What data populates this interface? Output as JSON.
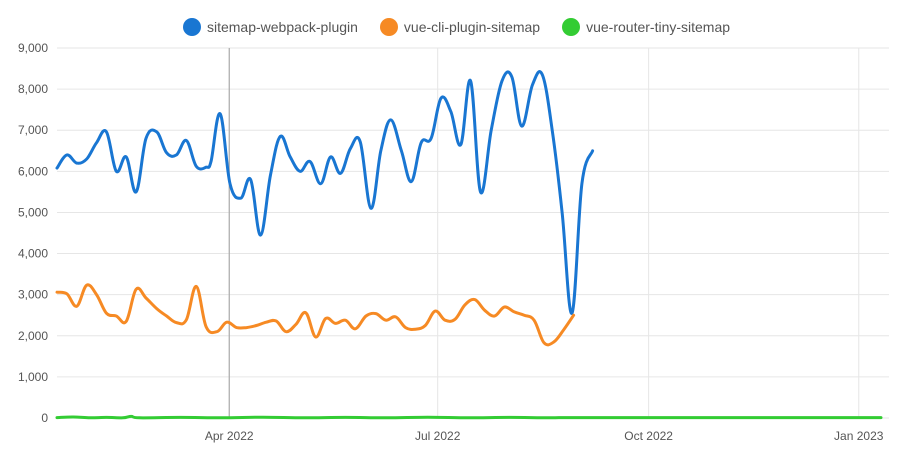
{
  "chart_data": {
    "type": "line",
    "title": "",
    "xlabel": "",
    "ylabel": "",
    "ylim": [
      0,
      9000
    ],
    "yticks": [
      0,
      1000,
      2000,
      3000,
      4000,
      5000,
      6000,
      7000,
      8000,
      9000
    ],
    "ytick_labels": [
      "0",
      "1,000",
      "2,000",
      "3,000",
      "4,000",
      "5,000",
      "6,000",
      "7,000",
      "8,000",
      "9,000"
    ],
    "xrange": [
      0,
      1
    ],
    "xticks": [
      {
        "label": "Apr 2022",
        "pos": 0.209
      },
      {
        "label": "Jul 2022",
        "pos": 0.462
      },
      {
        "label": "Oct 2022",
        "pos": 0.718
      },
      {
        "label": "Jan 2023",
        "pos": 0.973
      }
    ],
    "vertical_marker": 0.209,
    "legend_position": "top-center",
    "series": [
      {
        "name": "sitemap-webpack-plugin",
        "color": "#1976d2",
        "points": [
          [
            0.0,
            6080
          ],
          [
            0.012,
            6400
          ],
          [
            0.024,
            6200
          ],
          [
            0.036,
            6300
          ],
          [
            0.048,
            6700
          ],
          [
            0.06,
            6960
          ],
          [
            0.072,
            6000
          ],
          [
            0.084,
            6350
          ],
          [
            0.096,
            5500
          ],
          [
            0.108,
            6800
          ],
          [
            0.121,
            6960
          ],
          [
            0.133,
            6450
          ],
          [
            0.145,
            6400
          ],
          [
            0.157,
            6750
          ],
          [
            0.169,
            6120
          ],
          [
            0.181,
            6100
          ],
          [
            0.187,
            6250
          ],
          [
            0.198,
            7400
          ],
          [
            0.21,
            5700
          ],
          [
            0.223,
            5350
          ],
          [
            0.235,
            5800
          ],
          [
            0.247,
            4450
          ],
          [
            0.259,
            5900
          ],
          [
            0.271,
            6850
          ],
          [
            0.283,
            6350
          ],
          [
            0.295,
            6000
          ],
          [
            0.307,
            6240
          ],
          [
            0.32,
            5700
          ],
          [
            0.332,
            6350
          ],
          [
            0.344,
            5950
          ],
          [
            0.356,
            6550
          ],
          [
            0.368,
            6720
          ],
          [
            0.381,
            5100
          ],
          [
            0.393,
            6500
          ],
          [
            0.405,
            7250
          ],
          [
            0.418,
            6500
          ],
          [
            0.43,
            5750
          ],
          [
            0.442,
            6700
          ],
          [
            0.454,
            6800
          ],
          [
            0.466,
            7780
          ],
          [
            0.478,
            7450
          ],
          [
            0.49,
            6650
          ],
          [
            0.502,
            8200
          ],
          [
            0.514,
            5500
          ],
          [
            0.527,
            7000
          ],
          [
            0.54,
            8200
          ],
          [
            0.552,
            8300
          ],
          [
            0.564,
            7100
          ],
          [
            0.577,
            8100
          ],
          [
            0.589,
            8350
          ],
          [
            0.601,
            7000
          ],
          [
            0.613,
            5000
          ],
          [
            0.625,
            2550
          ],
          [
            0.637,
            5700
          ],
          [
            0.65,
            6500
          ]
        ]
      },
      {
        "name": "vue-cli-plugin-sitemap",
        "color": "#f68a24",
        "points": [
          [
            0.0,
            3060
          ],
          [
            0.012,
            3020
          ],
          [
            0.024,
            2720
          ],
          [
            0.036,
            3230
          ],
          [
            0.048,
            3000
          ],
          [
            0.06,
            2550
          ],
          [
            0.072,
            2480
          ],
          [
            0.084,
            2350
          ],
          [
            0.096,
            3130
          ],
          [
            0.108,
            2920
          ],
          [
            0.121,
            2660
          ],
          [
            0.133,
            2480
          ],
          [
            0.145,
            2320
          ],
          [
            0.157,
            2390
          ],
          [
            0.169,
            3200
          ],
          [
            0.181,
            2220
          ],
          [
            0.194,
            2100
          ],
          [
            0.206,
            2330
          ],
          [
            0.218,
            2200
          ],
          [
            0.23,
            2200
          ],
          [
            0.242,
            2250
          ],
          [
            0.254,
            2330
          ],
          [
            0.266,
            2360
          ],
          [
            0.278,
            2100
          ],
          [
            0.29,
            2280
          ],
          [
            0.302,
            2560
          ],
          [
            0.314,
            1970
          ],
          [
            0.326,
            2420
          ],
          [
            0.338,
            2300
          ],
          [
            0.35,
            2380
          ],
          [
            0.362,
            2170
          ],
          [
            0.375,
            2480
          ],
          [
            0.387,
            2540
          ],
          [
            0.399,
            2380
          ],
          [
            0.411,
            2460
          ],
          [
            0.423,
            2200
          ],
          [
            0.435,
            2160
          ],
          [
            0.447,
            2250
          ],
          [
            0.459,
            2600
          ],
          [
            0.471,
            2380
          ],
          [
            0.483,
            2400
          ],
          [
            0.495,
            2750
          ],
          [
            0.507,
            2880
          ],
          [
            0.519,
            2620
          ],
          [
            0.531,
            2480
          ],
          [
            0.543,
            2700
          ],
          [
            0.555,
            2580
          ],
          [
            0.567,
            2500
          ],
          [
            0.579,
            2380
          ],
          [
            0.591,
            1830
          ],
          [
            0.603,
            1850
          ],
          [
            0.615,
            2150
          ],
          [
            0.627,
            2500
          ]
        ]
      },
      {
        "name": "vue-router-tiny-sitemap",
        "color": "#33cc33",
        "points": [
          [
            0.0,
            10
          ],
          [
            0.02,
            25
          ],
          [
            0.04,
            5
          ],
          [
            0.06,
            15
          ],
          [
            0.08,
            5
          ],
          [
            0.09,
            40
          ],
          [
            0.1,
            5
          ],
          [
            0.15,
            15
          ],
          [
            0.2,
            5
          ],
          [
            0.25,
            20
          ],
          [
            0.3,
            5
          ],
          [
            0.35,
            15
          ],
          [
            0.4,
            5
          ],
          [
            0.45,
            20
          ],
          [
            0.5,
            5
          ],
          [
            0.55,
            15
          ],
          [
            0.6,
            5
          ],
          [
            0.65,
            10
          ],
          [
            1.0,
            10
          ]
        ]
      }
    ]
  }
}
